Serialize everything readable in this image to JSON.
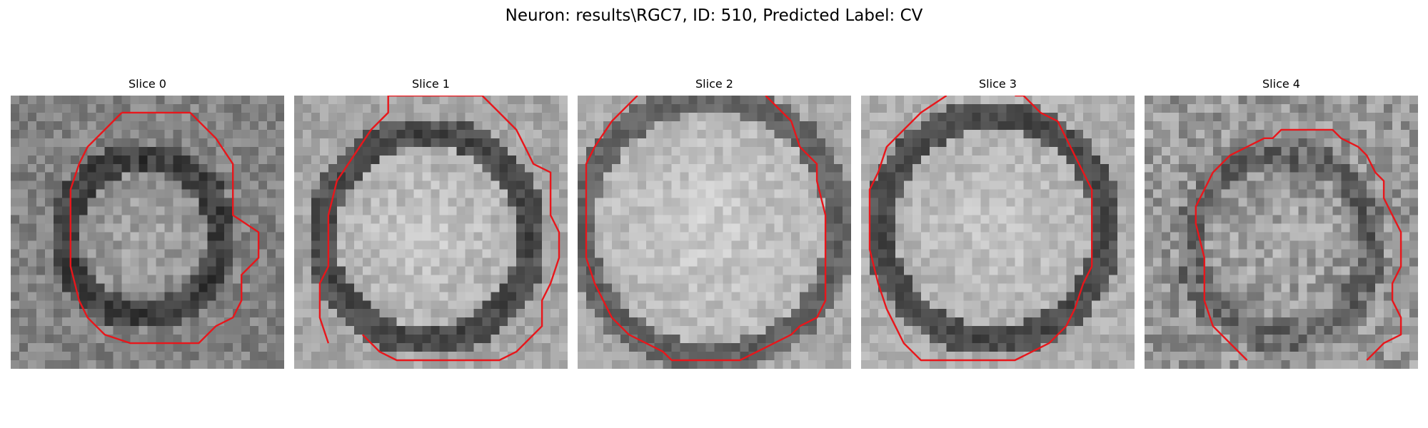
{
  "figure": {
    "suptitle": "Neuron: results\\RGC7, ID: 510, Predicted Label: CV",
    "contour_color": "#e8161b",
    "colormap": "gray"
  },
  "slices": [
    {
      "title": "Slice 0"
    },
    {
      "title": "Slice 1"
    },
    {
      "title": "Slice 2"
    },
    {
      "title": "Slice 3"
    },
    {
      "title": "Slice 4"
    }
  ]
}
